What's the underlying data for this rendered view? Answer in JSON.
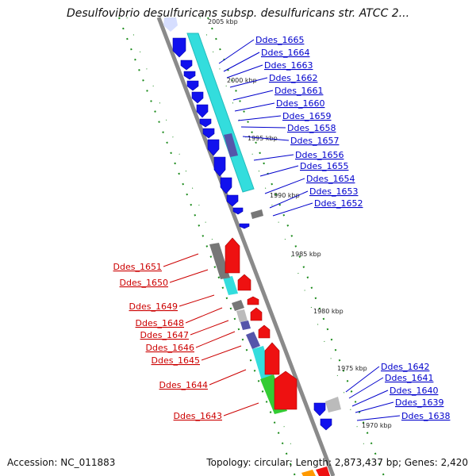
{
  "title": "Desulfovibrio desulfuricans subsp. desulfuricans str. ATCC 2...",
  "footer": {
    "accession": "Accession: NC_011883",
    "topology": "Topology: circular; Length: 2,873,437 bp; Genes: 2,420"
  },
  "colors": {
    "forward_label": "#0000cc",
    "reverse_label": "#cc0000",
    "tick_green": "#1a8a1a",
    "backbone": "#8a8a8a",
    "cyan_feature": "#33dddd",
    "green_feature": "#33cc33",
    "gray_feature": "#777777",
    "purple_feature": "#5555aa"
  },
  "kbp_markers": [
    "2005 kbp",
    "2000 kbp",
    "1995 kbp",
    "1990 kbp",
    "1985 kbp",
    "1980 kbp",
    "1975 kbp",
    "1970 kbp"
  ],
  "forward_genes": [
    "Ddes_1665",
    "Ddes_1664",
    "Ddes_1663",
    "Ddes_1662",
    "Ddes_1661",
    "Ddes_1660",
    "Ddes_1659",
    "Ddes_1658",
    "Ddes_1657",
    "Ddes_1656",
    "Ddes_1655",
    "Ddes_1654",
    "Ddes_1653",
    "Ddes_1652",
    "Ddes_1642",
    "Ddes_1641",
    "Ddes_1640",
    "Ddes_1639",
    "Ddes_1638"
  ],
  "reverse_genes": [
    "Ddes_1651",
    "Ddes_1650",
    "Ddes_1649",
    "Ddes_1648",
    "Ddes_1647",
    "Ddes_1646",
    "Ddes_1645",
    "Ddes_1644",
    "Ddes_1643"
  ]
}
